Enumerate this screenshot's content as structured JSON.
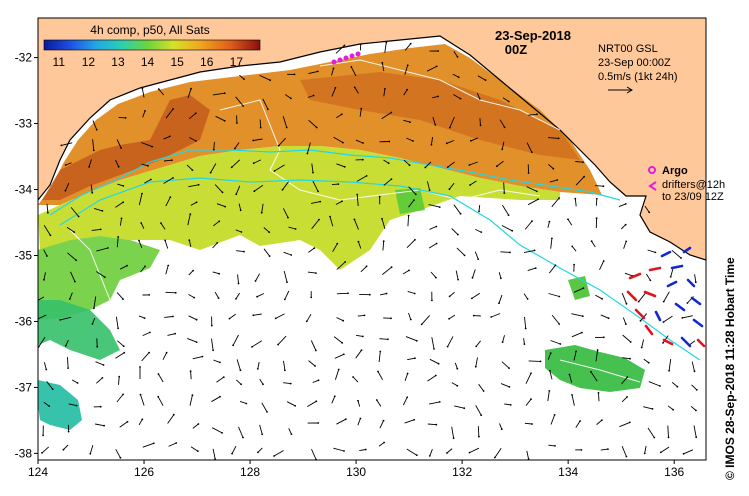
{
  "map": {
    "date_title": "23-Sep-2018",
    "time_title": "00Z",
    "colorbar": {
      "title": "4h comp, p50, All Sats",
      "ticks": [
        "11",
        "12",
        "13",
        "14",
        "15",
        "16",
        "17"
      ],
      "min": 10.5,
      "max": 17.8
    },
    "info_box": {
      "line1": "NRT00 GSL",
      "line2": "23-Sep 00:00Z",
      "line3": "0.5m/s (1kt 24h)"
    },
    "argo_legend": {
      "label": "Argo",
      "line1": "drifters@12h",
      "line2": "to 23/09 12Z"
    },
    "x_ticks": [
      "124",
      "126",
      "128",
      "130",
      "132",
      "134",
      "136"
    ],
    "y_ticks": [
      "-32",
      "-33",
      "-34",
      "-35",
      "-36",
      "-37",
      "-38"
    ],
    "x_range": [
      124,
      136.6
    ],
    "y_range": [
      -38.1,
      -31.4
    ],
    "side_label": "© IMOS 28-Sep-2018 11:28 Hobart Time",
    "colors": {
      "land": "#FFC89A",
      "current": "#22D6E6",
      "argo": "#E01EE0",
      "drifter_red": "#E0141E",
      "drifter_blue": "#1428D0"
    }
  }
}
